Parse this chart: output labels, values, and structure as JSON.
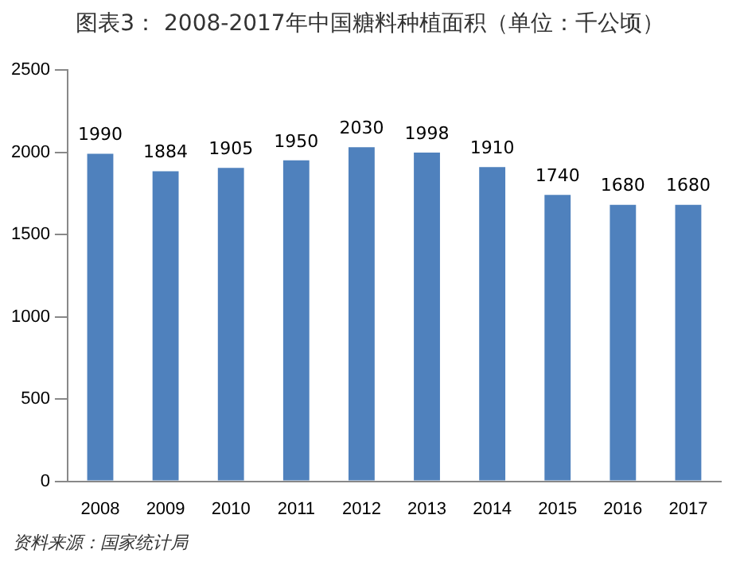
{
  "chart_data": {
    "type": "bar",
    "title": "图表3： 2008-2017年中国糖料种植面积（单位：千公顷）",
    "categories": [
      "2008",
      "2009",
      "2010",
      "2011",
      "2012",
      "2013",
      "2014",
      "2015",
      "2016",
      "2017"
    ],
    "values": [
      1990,
      1884,
      1905,
      1950,
      2030,
      1998,
      1910,
      1740,
      1680,
      1680
    ],
    "color": "#4f81bd",
    "ylim": [
      0,
      2500
    ],
    "yticks": [
      0,
      500,
      1000,
      1500,
      2000,
      2500
    ],
    "grid": false,
    "data_labels": true,
    "annotations": [
      "资料来源：国家统计局"
    ]
  }
}
